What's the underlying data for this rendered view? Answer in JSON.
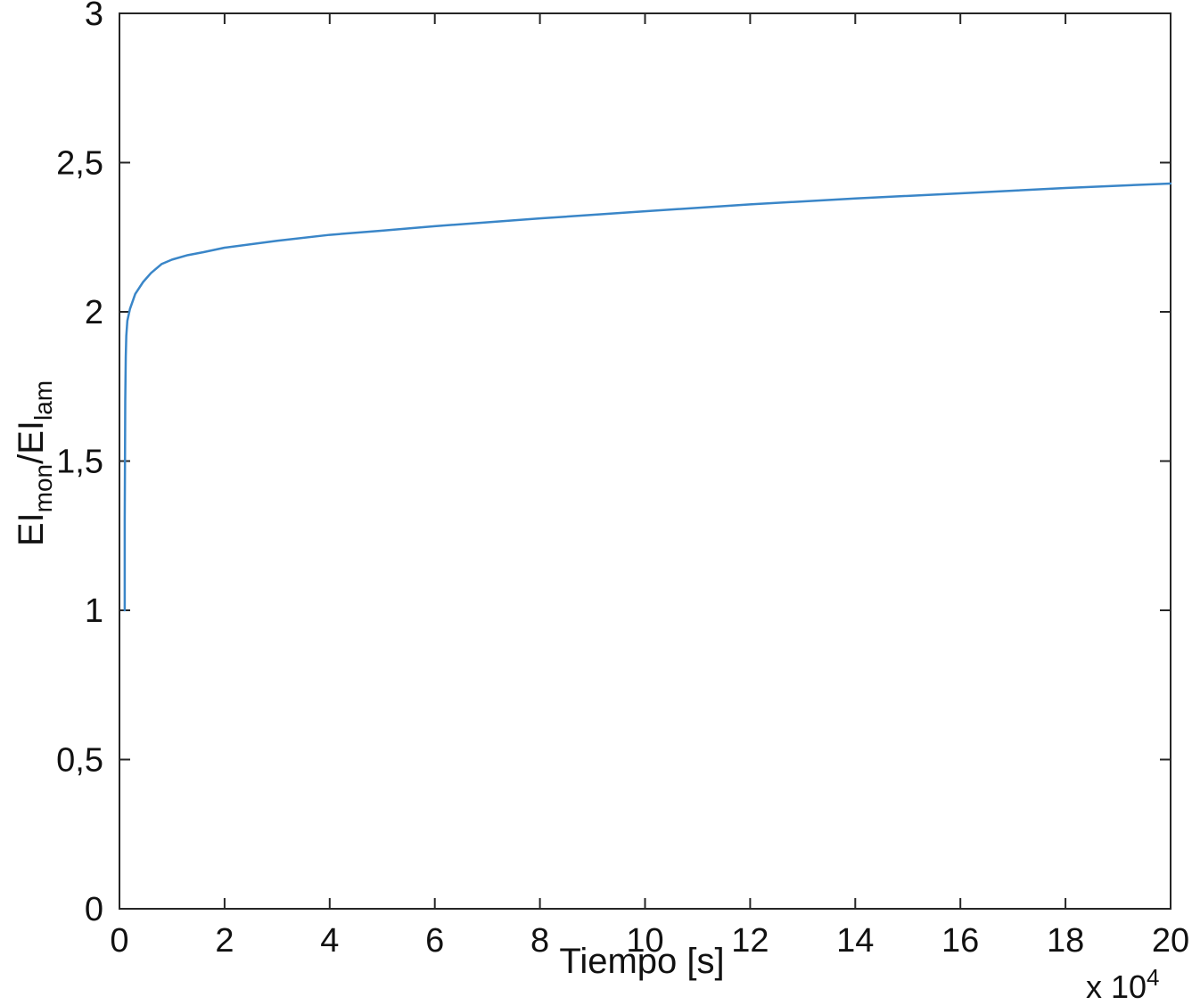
{
  "chart_data": {
    "type": "line",
    "title": "",
    "xlabel": "Tiempo [s]",
    "ylabel": {
      "main1": "EI",
      "sub1": "mon",
      "slash": "/EI",
      "sub2": "lam"
    },
    "x_multiplier_label": "x 10",
    "x_multiplier_exponent": "4",
    "xlim": [
      0,
      20
    ],
    "ylim": [
      0,
      3
    ],
    "grid": true,
    "x_ticks": [
      {
        "value": 0,
        "label": "0"
      },
      {
        "value": 2,
        "label": "2"
      },
      {
        "value": 4,
        "label": "4"
      },
      {
        "value": 6,
        "label": "6"
      },
      {
        "value": 8,
        "label": "8"
      },
      {
        "value": 10,
        "label": "10"
      },
      {
        "value": 12,
        "label": "12"
      },
      {
        "value": 14,
        "label": "14"
      },
      {
        "value": 16,
        "label": "16"
      },
      {
        "value": 18,
        "label": "18"
      },
      {
        "value": 20,
        "label": "20"
      }
    ],
    "y_ticks": [
      {
        "value": 0,
        "label": "0"
      },
      {
        "value": 0.5,
        "label": "0,5"
      },
      {
        "value": 1,
        "label": "1"
      },
      {
        "value": 1.5,
        "label": "1,5"
      },
      {
        "value": 2,
        "label": "2"
      },
      {
        "value": 2.5,
        "label": "2,5"
      },
      {
        "value": 3,
        "label": "3"
      }
    ],
    "series": [
      {
        "color": "#3a86c8",
        "x": [
          0.1,
          0.1,
          0.11,
          0.12,
          0.13,
          0.15,
          0.2,
          0.3,
          0.45,
          0.6,
          0.8,
          1.0,
          1.3,
          1.6,
          2,
          3,
          4,
          5,
          6,
          8,
          10,
          12,
          14,
          16,
          18,
          20
        ],
        "y": [
          1.0,
          1.3,
          1.7,
          1.85,
          1.92,
          1.97,
          2.01,
          2.06,
          2.1,
          2.13,
          2.16,
          2.175,
          2.19,
          2.2,
          2.215,
          2.238,
          2.258,
          2.272,
          2.287,
          2.313,
          2.337,
          2.36,
          2.38,
          2.397,
          2.415,
          2.43
        ]
      }
    ]
  }
}
